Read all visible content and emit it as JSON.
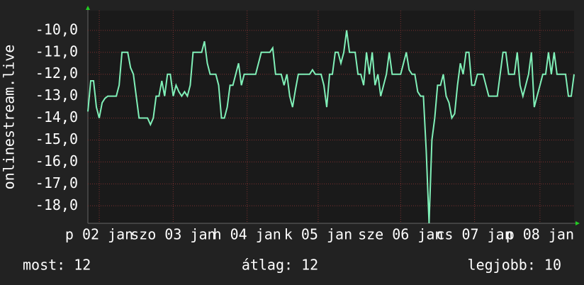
{
  "chart_data": {
    "type": "line",
    "y_label": "onlinestream.live",
    "series": [
      {
        "color": "#80f0b8",
        "values": [
          -13.7,
          -12.3,
          -12.3,
          -13.5,
          -14,
          -13.3,
          -13.1,
          -13,
          -13,
          -13,
          -13,
          -12.5,
          -11,
          -11,
          -11,
          -11.7,
          -12,
          -13,
          -14,
          -14,
          -14,
          -14,
          -14.3,
          -14,
          -13,
          -13,
          -12.3,
          -13,
          -12,
          -12,
          -13,
          -12.5,
          -12.8,
          -13,
          -12.8,
          -13,
          -12.5,
          -11,
          -11,
          -11,
          -11,
          -10.5,
          -11.5,
          -12,
          -12,
          -12,
          -12.5,
          -14,
          -14,
          -13.5,
          -12.5,
          -12.5,
          -12,
          -11.5,
          -12.5,
          -12,
          -12,
          -12,
          -12,
          -12,
          -11.5,
          -11,
          -11,
          -11,
          -11,
          -10.8,
          -12,
          -12,
          -12,
          -12.5,
          -12,
          -13,
          -13.5,
          -12.7,
          -12,
          -12,
          -12,
          -12,
          -12,
          -11.8,
          -12,
          -12,
          -12,
          -12.5,
          -13.5,
          -12,
          -12,
          -11,
          -11,
          -11.5,
          -11,
          -10,
          -11,
          -11,
          -11,
          -12,
          -12,
          -12.5,
          -11,
          -12,
          -11,
          -12.5,
          -12,
          -13,
          -12.5,
          -12,
          -11,
          -12,
          -12,
          -12,
          -12,
          -11.5,
          -11,
          -11.8,
          -12,
          -12,
          -12.8,
          -13,
          -13,
          -15.5,
          -18.8,
          -15,
          -14,
          -12.5,
          -12.5,
          -12,
          -13,
          -13.3,
          -14,
          -13.8,
          -12.5,
          -11.5,
          -12,
          -11,
          -11,
          -12.5,
          -12.5,
          -12,
          -12,
          -12,
          -12.5,
          -13,
          -13,
          -13,
          -13,
          -12,
          -11,
          -11,
          -12,
          -12,
          -12,
          -11,
          -12.5,
          -13,
          -12.5,
          -12,
          -11,
          -13.5,
          -13,
          -12.5,
          -12,
          -12,
          -11,
          -12,
          -11,
          -12,
          -12,
          -12,
          -12,
          -13,
          -13,
          -12
        ]
      }
    ],
    "xlim": [
      0,
      171
    ],
    "xticks": [
      {
        "value": 4,
        "label": "p 02 jan"
      },
      {
        "value": 30,
        "label": "szo 03 jan"
      },
      {
        "value": 56,
        "label": "h 04 jan"
      },
      {
        "value": 81,
        "label": "k 05 jan"
      },
      {
        "value": 110,
        "label": "sze 06 jan"
      },
      {
        "value": 136,
        "label": "cs 07 jan"
      },
      {
        "value": 159,
        "label": "p 08 jan"
      }
    ],
    "ylim": [
      -18.8,
      -9.1
    ],
    "yticks": [
      {
        "value": -10,
        "label": "-10,0"
      },
      {
        "value": -11,
        "label": "-11,0"
      },
      {
        "value": -12,
        "label": "-12,0"
      },
      {
        "value": -13,
        "label": "-13,0"
      },
      {
        "value": -14,
        "label": "-14,0"
      },
      {
        "value": -15,
        "label": "-15,0"
      },
      {
        "value": -16,
        "label": "-16,0"
      },
      {
        "value": -17,
        "label": "-17,0"
      },
      {
        "value": -18,
        "label": "-18,0"
      }
    ],
    "grid": true,
    "stats": [
      "most: 12",
      "átlag: 12",
      "legjobb: 10"
    ]
  }
}
